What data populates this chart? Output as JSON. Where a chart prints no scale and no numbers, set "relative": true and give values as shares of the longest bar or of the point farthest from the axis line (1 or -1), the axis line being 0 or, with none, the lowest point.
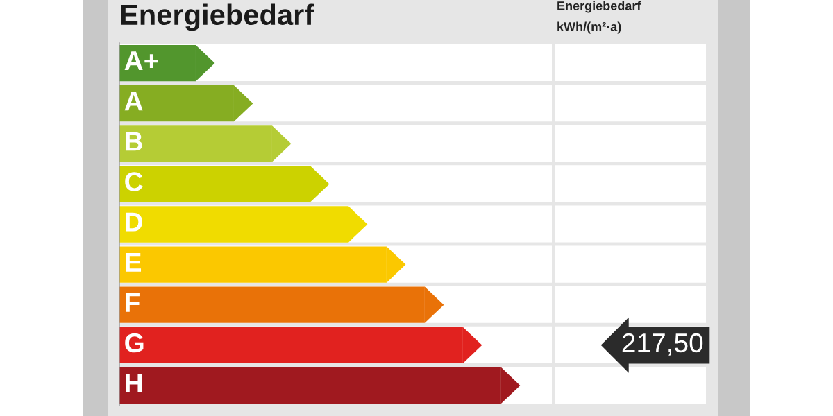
{
  "chart_data": {
    "type": "bar",
    "orientation": "horizontal",
    "relative": true,
    "title": "Energiebedarf",
    "categories": [
      "A+",
      "A",
      "B",
      "C",
      "D",
      "E",
      "F",
      "G",
      "H"
    ],
    "values": [
      0.2,
      0.3,
      0.4,
      0.5,
      0.6,
      0.7,
      0.8,
      0.9,
      1.0
    ],
    "colors": [
      "#52962d",
      "#86ad22",
      "#b5cc35",
      "#ccd200",
      "#f0dc00",
      "#fbc800",
      "#e97208",
      "#e1221f",
      "#a0191f"
    ],
    "annotations": [
      "Energiebedarf",
      "kWh/(m²·a)",
      "217,50"
    ]
  }
}
